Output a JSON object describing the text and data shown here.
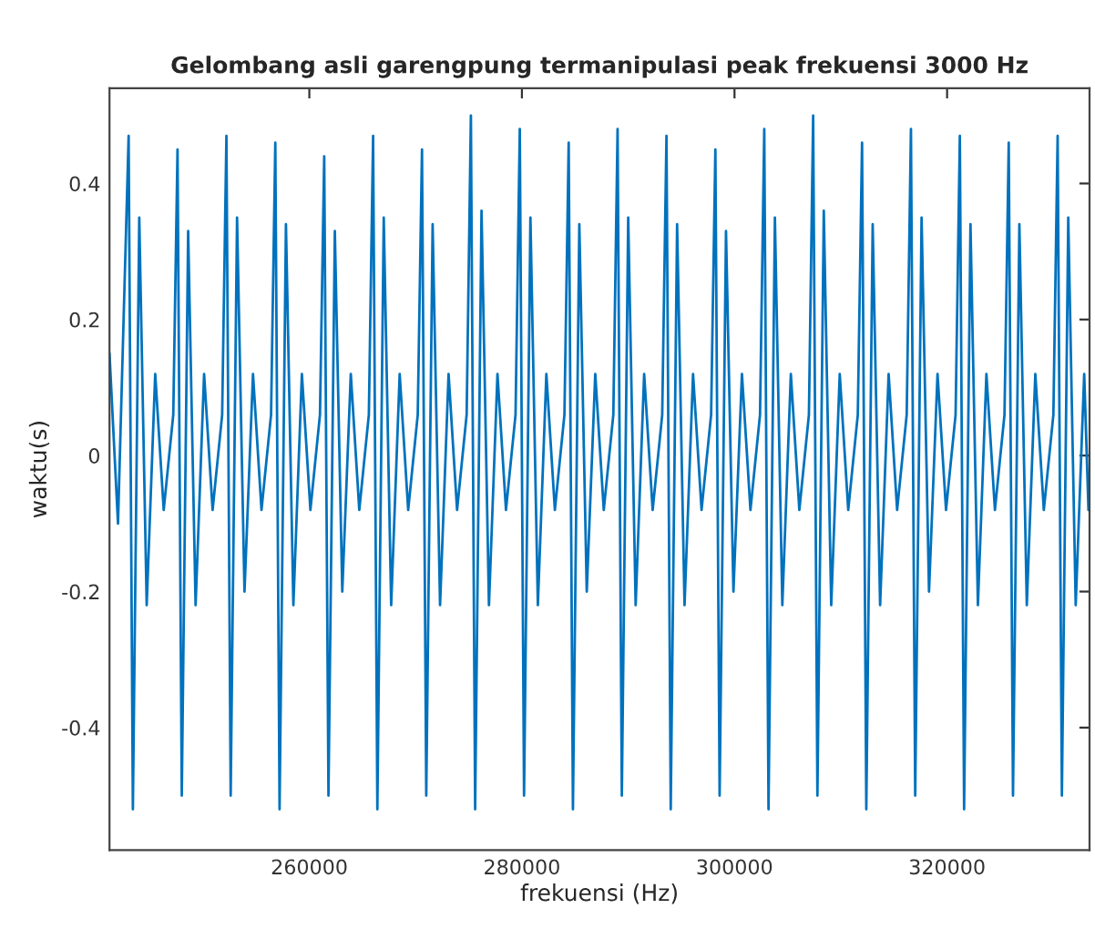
{
  "chart_data": {
    "type": "line",
    "title": "Gelombang asli garengpung termanipulasi peak frekuensi 3000 Hz",
    "xlabel": "frekuensi (Hz)",
    "ylabel": "waktu(s)",
    "x": [
      241200,
      242000,
      243000,
      243400,
      244000,
      244700,
      245500,
      246300,
      247200,
      247600,
      248000,
      248600,
      249300,
      250100,
      250900,
      251800,
      252200,
      252600,
      253200,
      253900,
      254700,
      255500,
      256400,
      256800,
      257200,
      257800,
      258500,
      259300,
      260100,
      261000,
      261400,
      261800,
      262400,
      263100,
      263900,
      264700,
      265600,
      266000,
      266400,
      267000,
      267700,
      268500,
      269300,
      270200,
      270600,
      271000,
      271600,
      272300,
      273100,
      273900,
      274800,
      275200,
      275600,
      276200,
      276900,
      277700,
      278500,
      279400,
      279800,
      280200,
      280800,
      281500,
      282300,
      283100,
      284000,
      284400,
      284800,
      285400,
      286100,
      286900,
      287700,
      288600,
      289000,
      289400,
      290000,
      290700,
      291500,
      292300,
      293200,
      293600,
      294000,
      294600,
      295300,
      296100,
      296900,
      297800,
      298200,
      298600,
      299200,
      299900,
      300700,
      301500,
      302400,
      302800,
      303200,
      303800,
      304500,
      305300,
      306100,
      307000,
      307400,
      307800,
      308400,
      309100,
      309900,
      310700,
      311600,
      312000,
      312400,
      313000,
      313700,
      314500,
      315300,
      316200,
      316600,
      317000,
      317600,
      318300,
      319100,
      319900,
      320800,
      321200,
      321600,
      322200,
      322900,
      323700,
      324500,
      325400,
      325800,
      326200,
      326800,
      327500,
      328300,
      329100,
      330000,
      330400,
      330800,
      331400,
      332100,
      332900,
      333300
    ],
    "series": [
      {
        "color": "#0072bd",
        "values": [
          0.15,
          -0.1,
          0.47,
          -0.52,
          0.35,
          -0.22,
          0.12,
          -0.08,
          0.06,
          0.45,
          -0.5,
          0.33,
          -0.22,
          0.12,
          -0.08,
          0.06,
          0.47,
          -0.5,
          0.35,
          -0.2,
          0.12,
          -0.08,
          0.06,
          0.46,
          -0.52,
          0.34,
          -0.22,
          0.12,
          -0.08,
          0.06,
          0.44,
          -0.5,
          0.33,
          -0.2,
          0.12,
          -0.08,
          0.06,
          0.47,
          -0.52,
          0.35,
          -0.22,
          0.12,
          -0.08,
          0.06,
          0.45,
          -0.5,
          0.34,
          -0.22,
          0.12,
          -0.08,
          0.06,
          0.5,
          -0.52,
          0.36,
          -0.22,
          0.12,
          -0.08,
          0.06,
          0.48,
          -0.5,
          0.35,
          -0.22,
          0.12,
          -0.08,
          0.06,
          0.46,
          -0.52,
          0.34,
          -0.2,
          0.12,
          -0.08,
          0.06,
          0.48,
          -0.5,
          0.35,
          -0.22,
          0.12,
          -0.08,
          0.06,
          0.47,
          -0.52,
          0.34,
          -0.22,
          0.12,
          -0.08,
          0.06,
          0.45,
          -0.5,
          0.33,
          -0.2,
          0.12,
          -0.08,
          0.06,
          0.48,
          -0.52,
          0.35,
          -0.22,
          0.12,
          -0.08,
          0.06,
          0.5,
          -0.5,
          0.36,
          -0.22,
          0.12,
          -0.08,
          0.06,
          0.46,
          -0.52,
          0.34,
          -0.22,
          0.12,
          -0.08,
          0.06,
          0.48,
          -0.5,
          0.35,
          -0.2,
          0.12,
          -0.08,
          0.06,
          0.47,
          -0.52,
          0.34,
          -0.22,
          0.12,
          -0.08,
          0.06,
          0.46,
          -0.5,
          0.34,
          -0.22,
          0.12,
          -0.08,
          0.06,
          0.47,
          -0.5,
          0.35,
          -0.22,
          0.12,
          -0.08
        ]
      }
    ],
    "xlim": [
      241200,
      333400
    ],
    "ylim": [
      -0.58,
      0.54
    ],
    "xticks": [
      260000,
      280000,
      300000,
      320000
    ],
    "yticks": [
      -0.4,
      -0.2,
      0,
      0.2,
      0.4
    ]
  }
}
